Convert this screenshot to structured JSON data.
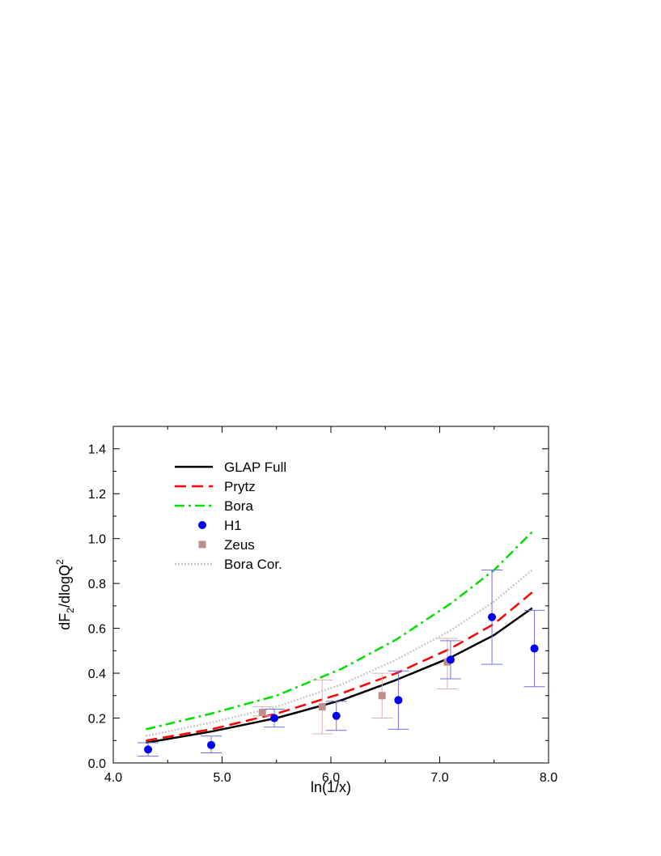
{
  "chart_data": {
    "type": "line",
    "title": "",
    "xlabel": "ln(1/x)",
    "ylabel_main": "dF",
    "ylabel_sub": "2",
    "ylabel_rest": "/dlogQ",
    "ylabel_sup": "2",
    "xlim": [
      4.0,
      8.0
    ],
    "ylim": [
      0.0,
      1.5
    ],
    "x_ticks": [
      4.0,
      5.0,
      6.0,
      7.0,
      8.0
    ],
    "x_tick_labels": [
      "4.0",
      "5.0",
      "6.0",
      "7.0",
      "8.0"
    ],
    "y_ticks": [
      0.0,
      0.2,
      0.4,
      0.6,
      0.8,
      1.0,
      1.2,
      1.4
    ],
    "y_tick_labels": [
      "0.0",
      "0.2",
      "0.4",
      "0.6",
      "0.8",
      "1.0",
      "1.2",
      "1.4"
    ],
    "grid": false,
    "legend_position": "top-left",
    "series": [
      {
        "name": "GLAP Full",
        "kind": "line",
        "color": "#000000",
        "style": "solid",
        "x": [
          4.3,
          4.9,
          5.5,
          6.1,
          6.6,
          7.1,
          7.5,
          7.85
        ],
        "y": [
          0.09,
          0.14,
          0.2,
          0.28,
          0.37,
          0.47,
          0.57,
          0.69
        ]
      },
      {
        "name": "Prytz",
        "kind": "line",
        "color": "#ff0000",
        "style": "dashed",
        "x": [
          4.3,
          4.9,
          5.5,
          6.1,
          6.6,
          7.1,
          7.5,
          7.85
        ],
        "y": [
          0.1,
          0.15,
          0.22,
          0.31,
          0.4,
          0.51,
          0.62,
          0.76
        ]
      },
      {
        "name": "Bora",
        "kind": "line",
        "color": "#00e000",
        "style": "dashdot",
        "x": [
          4.3,
          4.9,
          5.5,
          6.1,
          6.6,
          7.1,
          7.5,
          7.85
        ],
        "y": [
          0.15,
          0.22,
          0.3,
          0.42,
          0.55,
          0.71,
          0.86,
          1.03
        ]
      },
      {
        "name": "H1",
        "kind": "points",
        "marker": "circle",
        "color": "#0000ee",
        "x": [
          4.32,
          4.9,
          5.48,
          6.05,
          6.62,
          7.1,
          7.48,
          7.87
        ],
        "y": [
          0.06,
          0.08,
          0.2,
          0.21,
          0.28,
          0.46,
          0.65,
          0.51
        ],
        "err_low": [
          0.03,
          0.045,
          0.16,
          0.145,
          0.15,
          0.375,
          0.44,
          0.34
        ],
        "err_high": [
          0.09,
          0.12,
          0.24,
          0.275,
          0.41,
          0.545,
          0.86,
          0.68
        ]
      },
      {
        "name": "Zeus",
        "kind": "points",
        "marker": "square",
        "color": "#bc8f8f",
        "x": [
          5.37,
          5.92,
          6.47,
          7.07
        ],
        "y": [
          0.225,
          0.25,
          0.3,
          0.45
        ],
        "err_low": [
          0.21,
          0.13,
          0.2,
          0.33
        ],
        "err_high": [
          0.25,
          0.37,
          0.4,
          0.555
        ]
      },
      {
        "name": "Bora Cor.",
        "kind": "line",
        "color": "#c8c8c8",
        "style": "dotted",
        "x": [
          4.3,
          4.9,
          5.5,
          6.1,
          6.6,
          7.1,
          7.5,
          7.85
        ],
        "y": [
          0.12,
          0.18,
          0.25,
          0.35,
          0.46,
          0.59,
          0.72,
          0.86
        ]
      }
    ]
  }
}
